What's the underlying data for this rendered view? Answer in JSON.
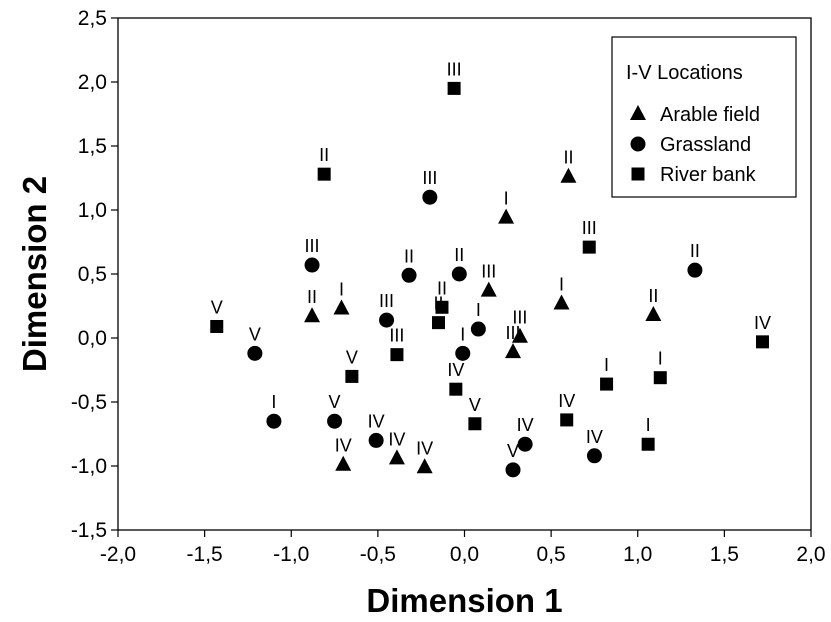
{
  "chart_data": {
    "type": "scatter",
    "title": "",
    "xlabel": "Dimension 1",
    "ylabel": "Dimension 2",
    "xlim": [
      -2.0,
      2.0
    ],
    "ylim": [
      -1.5,
      2.5
    ],
    "xticks": [
      -2.0,
      -1.5,
      -1.0,
      -0.5,
      0.0,
      0.5,
      1.0,
      1.5,
      2.0
    ],
    "yticks": [
      -1.5,
      -1.0,
      -0.5,
      0.0,
      0.5,
      1.0,
      1.5,
      2.0,
      2.5
    ],
    "xtick_labels": [
      "-2,0",
      "-1,5",
      "-1,0",
      "-0,5",
      "0,0",
      "0,5",
      "1,0",
      "1,5",
      "2,0"
    ],
    "ytick_labels": [
      "-1,5",
      "-1,0",
      "-0,5",
      "0,0",
      "0,5",
      "1,0",
      "1,5",
      "2,0",
      "2,5"
    ],
    "grid": false,
    "legend": {
      "title": "I-V Locations",
      "placement": "top-right"
    },
    "series": [
      {
        "name": "Arable field",
        "marker": "triangle",
        "color": "#000000",
        "points": [
          {
            "x": 0.24,
            "y": 0.94,
            "label": "I"
          },
          {
            "x": 0.56,
            "y": 0.27,
            "label": "I"
          },
          {
            "x": -0.71,
            "y": 0.23,
            "label": "I"
          },
          {
            "x": 0.6,
            "y": 1.26,
            "label": "II"
          },
          {
            "x": -0.88,
            "y": 0.17,
            "label": "II"
          },
          {
            "x": 1.09,
            "y": 0.18,
            "label": "II"
          },
          {
            "x": 0.14,
            "y": 0.37,
            "label": "III"
          },
          {
            "x": 0.32,
            "y": 0.01,
            "label": "III"
          },
          {
            "x": 0.28,
            "y": -0.11,
            "label": "III"
          },
          {
            "x": -0.7,
            "y": -0.99,
            "label": "IV"
          },
          {
            "x": -0.39,
            "y": -0.94,
            "label": "IV"
          },
          {
            "x": -0.23,
            "y": -1.01,
            "label": "IV"
          }
        ]
      },
      {
        "name": "Grassland",
        "marker": "circle",
        "color": "#000000",
        "points": [
          {
            "x": -1.1,
            "y": -0.65,
            "label": "I"
          },
          {
            "x": 0.08,
            "y": 0.07,
            "label": "I"
          },
          {
            "x": -0.01,
            "y": -0.12,
            "label": "I"
          },
          {
            "x": -0.32,
            "y": 0.49,
            "label": "II"
          },
          {
            "x": -0.03,
            "y": 0.5,
            "label": "II"
          },
          {
            "x": 1.33,
            "y": 0.53,
            "label": "II"
          },
          {
            "x": -0.88,
            "y": 0.57,
            "label": "III"
          },
          {
            "x": -0.2,
            "y": 1.1,
            "label": "III"
          },
          {
            "x": -0.45,
            "y": 0.14,
            "label": "III"
          },
          {
            "x": -0.51,
            "y": -0.8,
            "label": "IV"
          },
          {
            "x": 0.35,
            "y": -0.83,
            "label": "IV"
          },
          {
            "x": 0.75,
            "y": -0.92,
            "label": "IV"
          },
          {
            "x": -1.21,
            "y": -0.12,
            "label": "V"
          },
          {
            "x": -0.75,
            "y": -0.65,
            "label": "V"
          },
          {
            "x": 0.28,
            "y": -1.03,
            "label": "V"
          }
        ]
      },
      {
        "name": "River bank",
        "marker": "square",
        "color": "#000000",
        "points": [
          {
            "x": 0.82,
            "y": -0.36,
            "label": "I"
          },
          {
            "x": 1.13,
            "y": -0.31,
            "label": "I"
          },
          {
            "x": 1.06,
            "y": -0.83,
            "label": "I"
          },
          {
            "x": -0.81,
            "y": 1.28,
            "label": "II"
          },
          {
            "x": -0.13,
            "y": 0.24,
            "label": "II"
          },
          {
            "x": -0.15,
            "y": 0.12,
            "label": "II"
          },
          {
            "x": -0.06,
            "y": 1.95,
            "label": "III"
          },
          {
            "x": 0.72,
            "y": 0.71,
            "label": "III"
          },
          {
            "x": -0.39,
            "y": -0.13,
            "label": "III"
          },
          {
            "x": -0.05,
            "y": -0.4,
            "label": "IV"
          },
          {
            "x": 0.59,
            "y": -0.64,
            "label": "IV"
          },
          {
            "x": 1.72,
            "y": -0.03,
            "label": "IV"
          },
          {
            "x": -1.43,
            "y": 0.09,
            "label": "V"
          },
          {
            "x": -0.65,
            "y": -0.3,
            "label": "V"
          },
          {
            "x": 0.06,
            "y": -0.67,
            "label": "V"
          }
        ]
      }
    ]
  }
}
